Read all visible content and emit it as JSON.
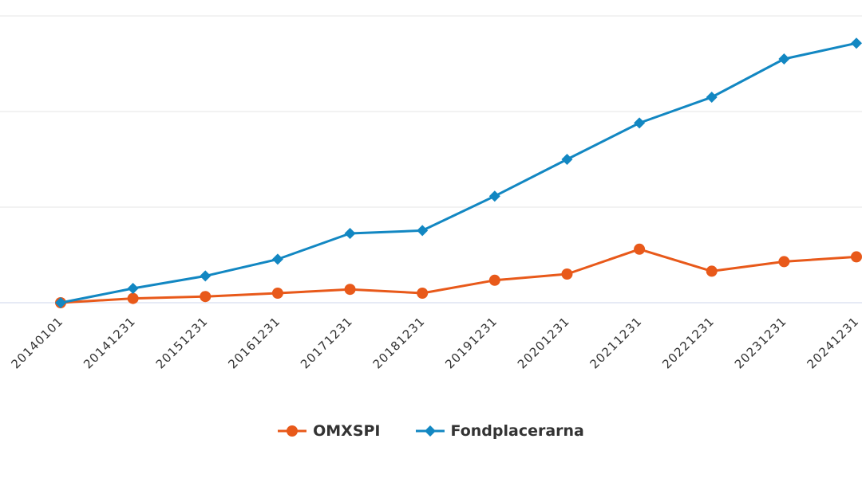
{
  "chart_data": {
    "type": "line",
    "categories": [
      "20140101",
      "20141231",
      "20151231",
      "20161231",
      "20171231",
      "20181231",
      "20191231",
      "20201231",
      "20211231",
      "20221231",
      "20231231",
      "20241231"
    ],
    "series": [
      {
        "name": "OMXSPI",
        "color": "#e8591a",
        "marker": "circle",
        "values": [
          100,
          109,
          113,
          120,
          128,
          120,
          147,
          160,
          212,
          166,
          186,
          196
        ]
      },
      {
        "name": "Fondplacerarna",
        "color": "#1287c2",
        "marker": "diamond",
        "values": [
          100,
          130,
          156,
          191,
          245,
          251,
          323,
          400,
          476,
          530,
          610,
          643
        ]
      }
    ],
    "ylim": [
      100,
      700
    ],
    "yticks": [
      100,
      300,
      500,
      700
    ],
    "grid": true,
    "legend_position": "bottom-center"
  },
  "legend": {
    "items": [
      {
        "label": "OMXSPI",
        "color": "#e8591a",
        "marker": "circle"
      },
      {
        "label": "Fondplacerarna",
        "color": "#1287c2",
        "marker": "diamond"
      }
    ]
  }
}
